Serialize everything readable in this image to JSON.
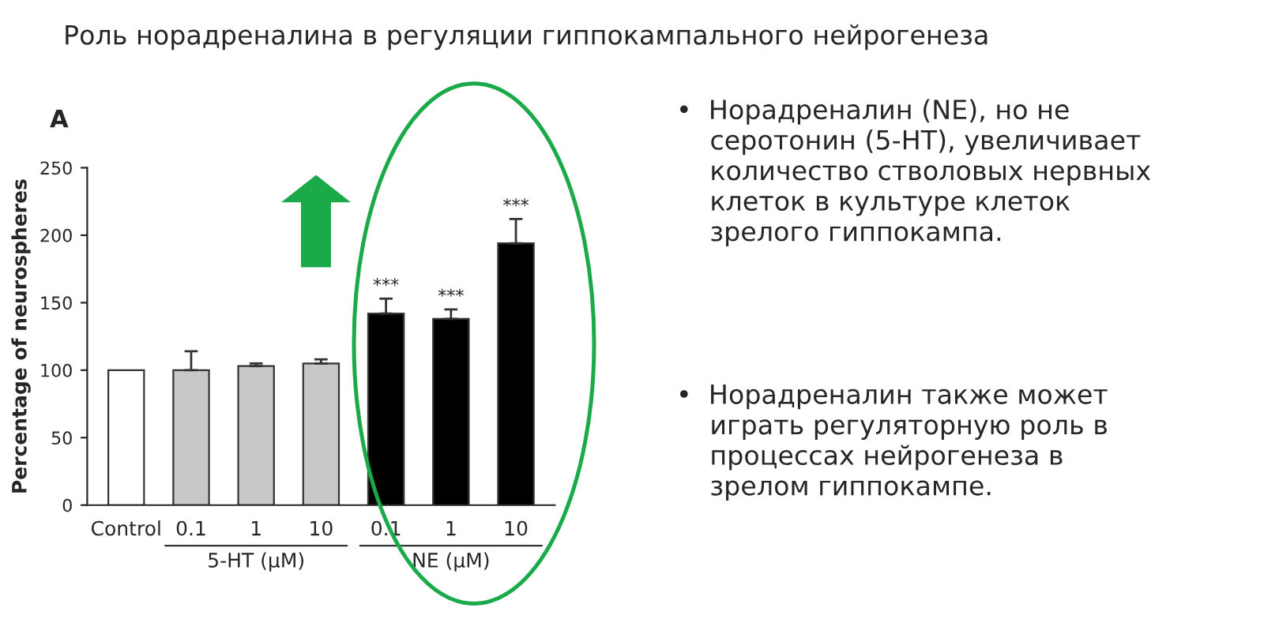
{
  "chart_data": {
    "type": "bar",
    "title": "Роль норадреналина в регуляции гиппокампального нейрогенеза",
    "ylabel": "Percentage of neurospheres",
    "categories": [
      "Control",
      "0.1",
      "1",
      "10",
      "0.1",
      "1",
      "10"
    ],
    "values": [
      100,
      100,
      103,
      105,
      142,
      138,
      194
    ],
    "colors": [
      "#ffffff",
      "#c8c8c8",
      "#c8c8c8",
      "#c8c8c8",
      "#000000",
      "#000000",
      "#000000"
    ],
    "errors": [
      null,
      [
        100,
        114
      ],
      [
        103,
        105
      ],
      [
        105,
        108
      ],
      [
        142,
        153
      ],
      [
        138,
        145
      ],
      [
        194,
        212
      ]
    ],
    "value_labels": [
      null,
      null,
      null,
      null,
      "***",
      "***",
      "***"
    ],
    "ylim": [
      0,
      250
    ],
    "yticks": [
      0,
      50,
      100,
      150,
      200,
      250
    ],
    "grid": false,
    "legend": false,
    "annotations": [
      "A",
      "5-HT (μM)",
      "NE (μM)",
      "•  Норадреналин (NE), но не\n    серотонин (5-HT), увеличивает\n    количество стволовых нервных\n    клеток в культуре клеток\n    зрелого гиппокампа.",
      "•  Норадреналин также может\n    играть регуляторную роль в\n    процессах нейрогенеза в\n    зрелом гиппокампе."
    ]
  }
}
